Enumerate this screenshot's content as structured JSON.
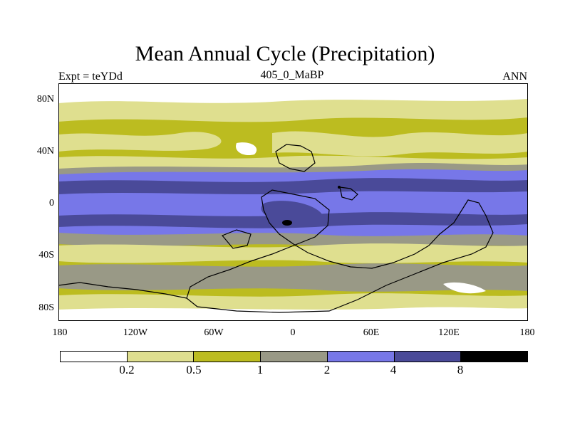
{
  "header": {
    "title": "Mean Annual Cycle (Precipitation)",
    "left_label": "Expt = teYDd",
    "center_label": "405_0_MaBP",
    "right_label": "ANN"
  },
  "map": {
    "lat_labels": [
      "80N",
      "40N",
      "0",
      "40S",
      "80S"
    ],
    "lon_labels": [
      "180",
      "120W",
      "60W",
      "0",
      "60E",
      "120E",
      "180"
    ]
  },
  "colorbar": {
    "levels": [
      "0.2",
      "0.5",
      "1",
      "2",
      "4",
      "8"
    ],
    "colors": [
      "#ffffff",
      "#dfdf8f",
      "#bcbc20",
      "#999986",
      "#7777e8",
      "#4a4a99",
      "#000000"
    ]
  }
}
